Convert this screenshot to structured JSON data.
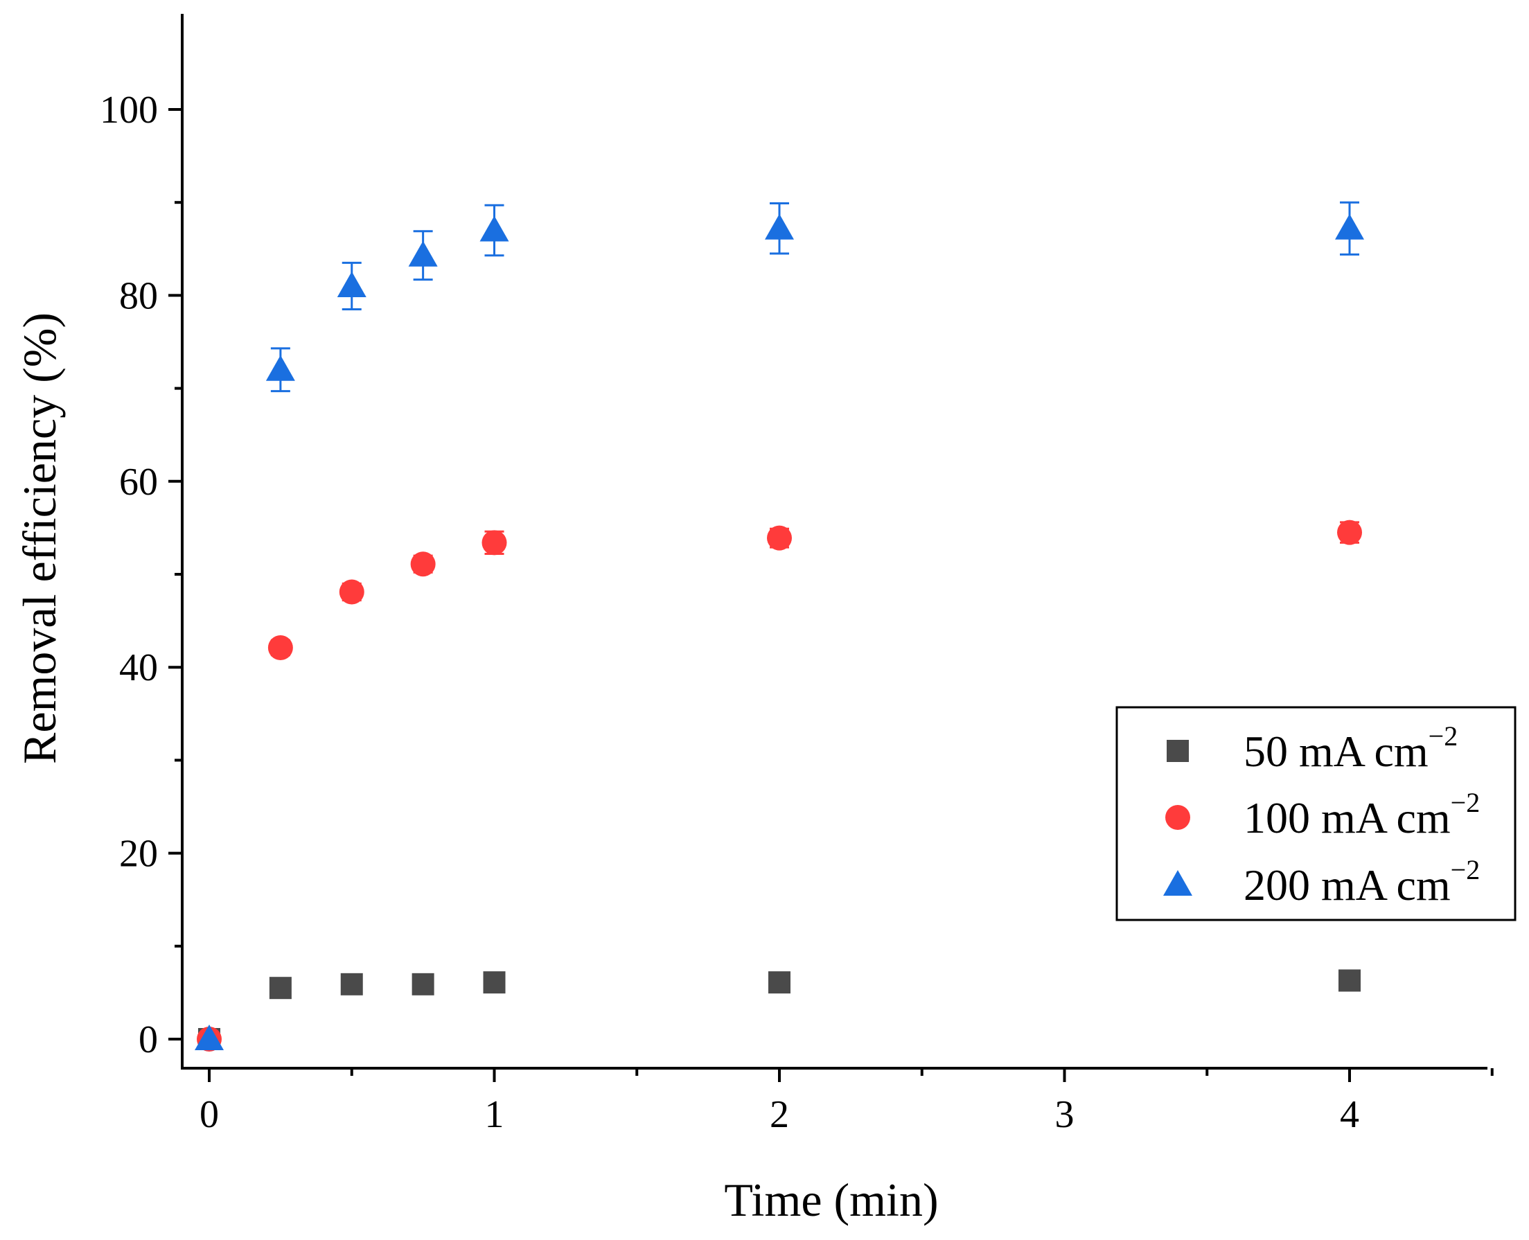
{
  "chart_data": {
    "type": "scatter",
    "title": "",
    "xlabel": "Time (min)",
    "ylabel": "Removal efficiency (%)",
    "xlim": [
      -0.1,
      4.5
    ],
    "ylim": [
      -3,
      110
    ],
    "x_ticks": [
      0,
      1,
      2,
      3,
      4
    ],
    "x_minor_ticks": [
      0.5,
      1.5,
      2.5,
      3.5,
      4.5
    ],
    "y_ticks": [
      0,
      20,
      40,
      60,
      80,
      100
    ],
    "y_minor_ticks": [
      10,
      30,
      50,
      70,
      90
    ],
    "x_tick_labels": [
      "0",
      "1",
      "2",
      "3",
      "4"
    ],
    "y_tick_labels": [
      "0",
      "20",
      "40",
      "60",
      "80",
      "100"
    ],
    "legend_position": "center-right",
    "grid": false,
    "series": [
      {
        "name": "50 mA cm",
        "superscript": "−2",
        "marker": "square",
        "color": "#4a4a4a",
        "x": [
          0,
          0.25,
          0.5,
          0.75,
          1,
          2,
          4
        ],
        "y": [
          0,
          5.5,
          5.9,
          5.9,
          6.1,
          6.1,
          6.3
        ],
        "yerr": [
          0,
          0.3,
          0.3,
          0.3,
          0.3,
          0.3,
          0.3
        ]
      },
      {
        "name": "100 mA cm",
        "superscript": "−2",
        "marker": "circle",
        "color": "#ff3b3b",
        "x": [
          0,
          0.25,
          0.5,
          0.75,
          1,
          2,
          4
        ],
        "y": [
          0,
          42.1,
          48.1,
          51.1,
          53.4,
          53.9,
          54.5
        ],
        "yerr": [
          0,
          0.8,
          0.9,
          0.9,
          1.2,
          1.0,
          1.1
        ]
      },
      {
        "name": "200 mA cm",
        "superscript": "−2",
        "marker": "triangle",
        "color": "#1a6fe0",
        "x": [
          0,
          0.25,
          0.5,
          0.75,
          1,
          2,
          4
        ],
        "y": [
          0,
          72,
          81,
          84.3,
          87,
          87.2,
          87.2
        ],
        "yerr": [
          0,
          2.3,
          2.5,
          2.6,
          2.7,
          2.7,
          2.8
        ]
      }
    ]
  }
}
